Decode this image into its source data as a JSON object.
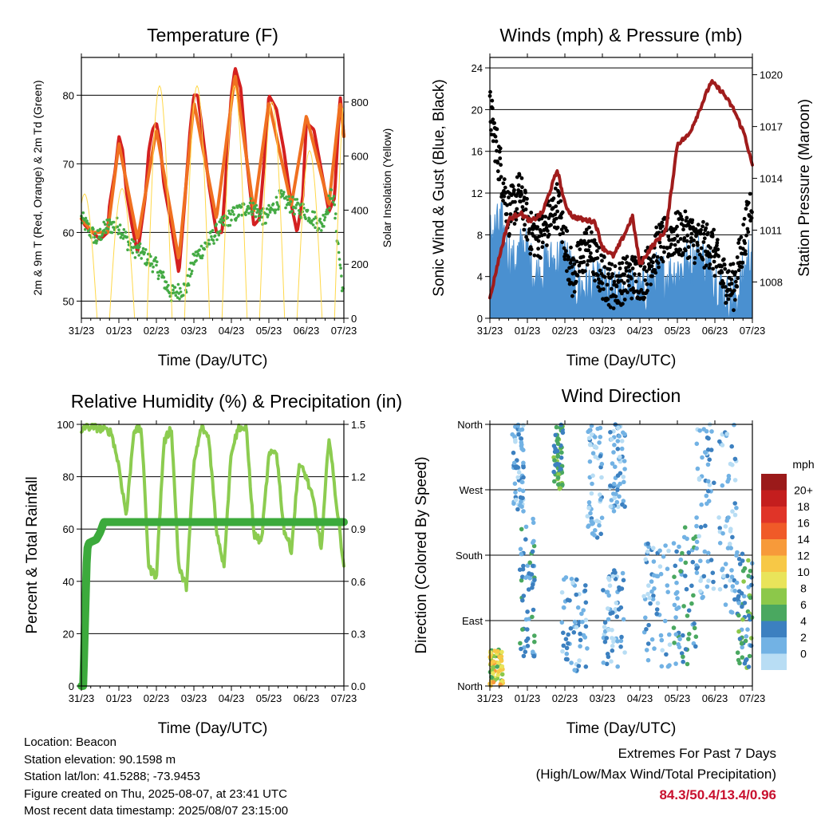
{
  "chart_data": [
    {
      "type": "line",
      "title": "Temperature (F)",
      "xlabel": "Time (Day/UTC)",
      "ylabel": "2m & 9m T (Red, Orange) & 2m Td (Green)",
      "y2label": "Solar Insolation (Yellow)",
      "categories": [
        "31/23",
        "01/23",
        "02/23",
        "03/23",
        "04/23",
        "05/23",
        "06/23",
        "07/23"
      ],
      "ylim": [
        47.5,
        85.5
      ],
      "yticks": [
        "50",
        "60",
        "70",
        "80"
      ],
      "y2lim": [
        0,
        965
      ],
      "y2ticks": [
        "0",
        "200",
        "400",
        "600",
        "800"
      ],
      "grid": true,
      "series": [
        {
          "key": "t2m",
          "color": "#d42020",
          "x": [
            0,
            0.1,
            0.3,
            0.5,
            0.7,
            0.75,
            0.9,
            1.0,
            1.1,
            1.2,
            1.35,
            1.5,
            1.7,
            1.8,
            1.9,
            2.0,
            2.1,
            2.2,
            2.4,
            2.6,
            2.75,
            2.9,
            3.0,
            3.1,
            3.2,
            3.4,
            3.6,
            3.75,
            3.9,
            4.0,
            4.1,
            4.25,
            4.4,
            4.6,
            4.75,
            4.9,
            5.0,
            5.2,
            5.4,
            5.6,
            5.75,
            5.9,
            6.0,
            6.2,
            6.4,
            6.6,
            6.75,
            6.9,
            7.0
          ],
          "values": [
            62,
            61,
            60,
            59,
            60,
            64,
            69,
            74,
            72,
            66,
            61,
            57,
            65,
            72,
            75,
            76,
            73,
            67,
            61,
            54,
            64,
            75,
            80,
            80,
            76,
            67,
            60,
            60,
            72,
            80,
            84,
            81,
            71,
            61,
            62,
            72,
            80,
            78,
            72,
            64,
            60,
            65,
            76,
            75,
            69,
            63,
            65,
            80,
            74
          ]
        },
        {
          "key": "t9m",
          "color": "#f07020",
          "x": [
            0,
            0.3,
            0.7,
            1.0,
            1.5,
            2.0,
            2.6,
            3.0,
            3.6,
            4.1,
            4.6,
            5.0,
            5.6,
            6.0,
            6.6,
            6.9,
            7.0
          ],
          "values": [
            62,
            60,
            60,
            73,
            59,
            75,
            56,
            79,
            62,
            83,
            63,
            79,
            64,
            77,
            64,
            79,
            74
          ]
        },
        {
          "key": "td2m",
          "color": "#44aa44",
          "x": [
            0,
            0.4,
            0.7,
            1.0,
            1.3,
            1.6,
            2.0,
            2.4,
            2.8,
            3.0,
            3.3,
            3.6,
            3.9,
            4.2,
            4.5,
            4.9,
            5.3,
            5.6,
            6.0,
            6.4,
            6.7,
            7.0
          ],
          "values": [
            62,
            59,
            61,
            61,
            58,
            57,
            55,
            51,
            52,
            56,
            58,
            60,
            62,
            63,
            64,
            62,
            65,
            64,
            63,
            61,
            66,
            50
          ]
        },
        {
          "key": "solar",
          "axis": "y2",
          "color": "#ffd84a",
          "shape": "sine",
          "peaks": [
            460,
            480,
            860,
            860,
            860,
            800,
            620,
            900
          ]
        }
      ]
    },
    {
      "type": "line",
      "title": "Winds (mph) & Pressure (mb)",
      "xlabel": "Time (Day/UTC)",
      "ylabel": "Sonic Wind & Gust (Blue, Black)",
      "y2label": "Station Pressure (Maroon)",
      "categories": [
        "31/23",
        "01/23",
        "02/23",
        "03/23",
        "04/23",
        "05/23",
        "06/23",
        "07/23"
      ],
      "ylim": [
        0,
        25
      ],
      "yticks": [
        "0",
        "4",
        "8",
        "12",
        "16",
        "20",
        "24"
      ],
      "y2lim": [
        1005.9,
        1021.0
      ],
      "y2ticks": [
        "1008",
        "1011",
        "1014",
        "1017",
        "1020"
      ],
      "grid": true,
      "series": [
        {
          "key": "wind",
          "color": "#4a90d0",
          "x": [
            0,
            0.3,
            0.6,
            0.9,
            1.2,
            1.5,
            2.0,
            2.3,
            2.7,
            3.0,
            3.3,
            3.7,
            4.0,
            4.4,
            4.8,
            5.2,
            5.6,
            6.0,
            6.3,
            6.6,
            7.0
          ],
          "values": [
            8,
            9,
            5,
            7,
            4,
            5,
            6,
            3,
            3,
            3,
            2,
            3,
            2,
            4,
            4,
            5,
            6,
            4,
            2,
            2,
            7
          ]
        },
        {
          "key": "gust",
          "color": "#000000",
          "x": [
            0,
            0.2,
            0.5,
            0.8,
            1.1,
            1.4,
            1.8,
            2.2,
            2.6,
            3.0,
            3.3,
            3.7,
            4.1,
            4.5,
            4.9,
            5.3,
            5.6,
            5.9,
            6.2,
            6.5,
            6.8,
            7.0
          ],
          "values": [
            20,
            16,
            10,
            12,
            8,
            8,
            11,
            4,
            7,
            4,
            3,
            4,
            4,
            7,
            8,
            8,
            7,
            7,
            4,
            3,
            8,
            12
          ]
        },
        {
          "key": "pressure",
          "axis": "y2",
          "color": "#a01c1c",
          "x": [
            0,
            0.2,
            0.5,
            0.8,
            1.1,
            1.4,
            1.8,
            2.0,
            2.2,
            2.5,
            2.8,
            3.0,
            3.3,
            3.6,
            3.8,
            4.0,
            4.3,
            4.7,
            5.0,
            5.3,
            5.6,
            5.9,
            6.2,
            6.5,
            6.8,
            7.0
          ],
          "values": [
            1007.0,
            1009.0,
            1011.6,
            1012.0,
            1011.5,
            1012.0,
            1014.5,
            1012.5,
            1011.8,
            1011.6,
            1011.5,
            1010.0,
            1009.5,
            1010.8,
            1011.8,
            1009.0,
            1010.0,
            1011.0,
            1016.0,
            1016.5,
            1018.0,
            1019.6,
            1019.0,
            1018.0,
            1016.5,
            1014.7
          ]
        }
      ]
    },
    {
      "type": "line",
      "title": "Relative Humidity (%) & Precipitation (in)",
      "xlabel": "Time (Day/UTC)",
      "ylabel": "Percent & Total Rainfall",
      "categories": [
        "31/23",
        "01/23",
        "02/23",
        "03/23",
        "04/23",
        "05/23",
        "06/23",
        "07/23"
      ],
      "ylim": [
        0,
        100
      ],
      "yticks": [
        "0",
        "20",
        "40",
        "60",
        "80",
        "100"
      ],
      "y2lim": [
        0,
        1.5
      ],
      "y2ticks": [
        "0.0",
        "0.3",
        "0.6",
        "0.9",
        "1.2",
        "1.5"
      ],
      "grid": true,
      "series": [
        {
          "key": "rh",
          "color": "#8ccc50",
          "x": [
            0,
            0.05,
            0.3,
            0.6,
            0.8,
            1.0,
            1.2,
            1.4,
            1.6,
            1.8,
            2.0,
            2.2,
            2.4,
            2.6,
            2.8,
            3.0,
            3.2,
            3.4,
            3.6,
            3.8,
            4.0,
            4.2,
            4.4,
            4.6,
            4.8,
            5.0,
            5.2,
            5.4,
            5.6,
            5.8,
            6.0,
            6.2,
            6.4,
            6.6,
            6.8,
            7.0
          ],
          "values": [
            96,
            99,
            99,
            98,
            97,
            84,
            65,
            98,
            98,
            45,
            42,
            93,
            99,
            45,
            38,
            85,
            99,
            95,
            60,
            46,
            90,
            99,
            98,
            58,
            55,
            88,
            90,
            60,
            52,
            85,
            80,
            70,
            52,
            96,
            70,
            46
          ]
        },
        {
          "key": "precip",
          "axis": "y2",
          "color": "#3caa3c",
          "x": [
            0,
            0.05,
            0.1,
            0.15,
            0.2,
            0.3,
            0.4,
            0.5,
            0.6,
            0.7,
            7.0
          ],
          "values": [
            0,
            0.0,
            0.4,
            0.78,
            0.82,
            0.83,
            0.84,
            0.88,
            0.94,
            0.94,
            0.94
          ]
        }
      ]
    },
    {
      "type": "scatter",
      "title": "Wind Direction",
      "xlabel": "Time (Day/UTC)",
      "ylabel": "Direction (Colored By Speed)",
      "categories": [
        "31/23",
        "01/23",
        "02/23",
        "03/23",
        "04/23",
        "05/23",
        "06/23",
        "07/23"
      ],
      "ylim": [
        0,
        360
      ],
      "yticks": [
        "North",
        "East",
        "South",
        "West",
        "North"
      ],
      "grid": true,
      "legend": {
        "title": "mph",
        "labels": [
          "20+",
          "18",
          "16",
          "14",
          "12",
          "10",
          "8",
          "6",
          "4",
          "2",
          "0"
        ],
        "colors": [
          "#9b1a1a",
          "#c41e1e",
          "#e03428",
          "#f05a28",
          "#f79a3a",
          "#f7c846",
          "#e9e45a",
          "#8cc84a",
          "#4aa860",
          "#3c80c0",
          "#72b2e4",
          "#b8ddf4"
        ]
      },
      "clusters": [
        {
          "x0": 0.0,
          "x1": 0.35,
          "dir0": 0,
          "dir1": 50,
          "speed0": 6,
          "speed1": 14
        },
        {
          "x0": 0.6,
          "x1": 0.9,
          "dir0": 240,
          "dir1": 360,
          "speed0": 0,
          "speed1": 4
        },
        {
          "x0": 1.7,
          "x1": 1.95,
          "dir0": 270,
          "dir1": 360,
          "speed0": 3,
          "speed1": 8
        },
        {
          "x0": 0.8,
          "x1": 1.2,
          "dir0": 40,
          "dir1": 230,
          "speed0": 1,
          "speed1": 6
        },
        {
          "x0": 1.9,
          "x1": 2.6,
          "dir0": 20,
          "dir1": 150,
          "speed0": 0,
          "speed1": 5
        },
        {
          "x0": 2.6,
          "x1": 3.0,
          "dir0": 200,
          "dir1": 360,
          "speed0": 0,
          "speed1": 4
        },
        {
          "x0": 3.0,
          "x1": 3.6,
          "dir0": 20,
          "dir1": 160,
          "speed0": 0,
          "speed1": 5
        },
        {
          "x0": 3.2,
          "x1": 3.6,
          "dir0": 240,
          "dir1": 360,
          "speed0": 0,
          "speed1": 4
        },
        {
          "x0": 4.1,
          "x1": 4.8,
          "dir0": 20,
          "dir1": 200,
          "speed0": 0,
          "speed1": 4
        },
        {
          "x0": 4.9,
          "x1": 5.5,
          "dir0": 30,
          "dir1": 220,
          "speed0": 1,
          "speed1": 7
        },
        {
          "x0": 5.5,
          "x1": 6.0,
          "dir0": 120,
          "dir1": 360,
          "speed0": 0,
          "speed1": 4
        },
        {
          "x0": 6.1,
          "x1": 6.6,
          "dir0": 100,
          "dir1": 360,
          "speed0": 0,
          "speed1": 4
        },
        {
          "x0": 6.6,
          "x1": 7.0,
          "dir0": 20,
          "dir1": 190,
          "speed0": 2,
          "speed1": 8
        }
      ]
    }
  ],
  "info": {
    "location": "Location: Beacon",
    "elevation": "Station elevation: 90.1598 m",
    "latlon": "Station lat/lon: 41.5288; -73.9453",
    "created": "Figure created on Thu, 2025-08-07, at 23:41 UTC",
    "recent": "Most recent data timestamp: 2025/08/07 23:15:00"
  },
  "extremes": {
    "title": "Extremes For Past 7 Days",
    "subtitle": "(High/Low/Max Wind/Total Precipitation)",
    "values": "84.3/50.4/13.4/0.96"
  }
}
